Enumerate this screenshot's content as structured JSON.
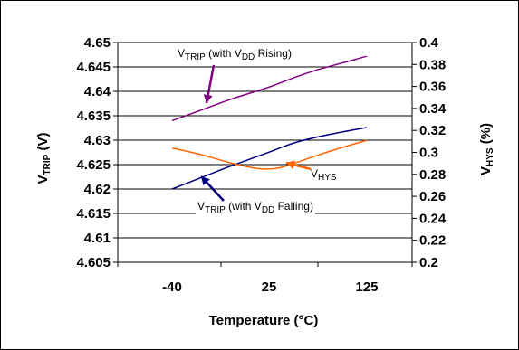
{
  "chart_data": {
    "type": "line",
    "x_categories": [
      "-40",
      "25",
      "125"
    ],
    "xlabel": "Temperature (°C)",
    "ylabel_left": {
      "main": "V",
      "sub": "TRIP",
      "rest": " (V)"
    },
    "ylabel_right": {
      "main": "V",
      "sub": "HYS",
      "rest": " (%)"
    },
    "ylim_left": [
      4.605,
      4.65
    ],
    "ylim_right": [
      0.2,
      0.4
    ],
    "yticks_left": [
      "4.65",
      "4.645",
      "4.64",
      "4.635",
      "4.63",
      "4.625",
      "4.62",
      "4.615",
      "4.61",
      "4.605"
    ],
    "yticks_right": [
      "0.4",
      "0.38",
      "0.36",
      "0.34",
      "0.32",
      "0.3",
      "0.28",
      "0.26",
      "0.24",
      "0.22",
      "0.2"
    ],
    "grid": "horizontal",
    "series": [
      {
        "name": "VTRIP (with VDD Rising)",
        "axis": "left",
        "color": "#800080",
        "points": [
          [
            -40,
            4.634
          ],
          [
            -20,
            4.6362
          ],
          [
            0,
            4.6385
          ],
          [
            25,
            4.6408
          ],
          [
            50,
            4.6428
          ],
          [
            75,
            4.6445
          ],
          [
            100,
            4.6458
          ],
          [
            125,
            4.6472
          ]
        ]
      },
      {
        "name": "VTRIP (with VDD Falling)",
        "axis": "left",
        "color": "#000080",
        "points": [
          [
            -40,
            4.62
          ],
          [
            -20,
            4.6224
          ],
          [
            0,
            4.6248
          ],
          [
            25,
            4.6275
          ],
          [
            50,
            4.6295
          ],
          [
            75,
            4.6307
          ],
          [
            100,
            4.6317
          ],
          [
            125,
            4.6326
          ]
        ]
      },
      {
        "name": "VHYS",
        "axis": "right",
        "color": "#FF6600",
        "points": [
          [
            -40,
            0.304
          ],
          [
            -20,
            0.298
          ],
          [
            0,
            0.29
          ],
          [
            15,
            0.2855
          ],
          [
            25,
            0.2845
          ],
          [
            40,
            0.2865
          ],
          [
            60,
            0.293
          ],
          [
            90,
            0.302
          ],
          [
            125,
            0.311
          ]
        ]
      }
    ],
    "annotations": [
      {
        "main": "V",
        "sub": "TRIP",
        "rest1": " (with V",
        "sub2": "DD",
        "rest2": " Rising)"
      },
      {
        "main": "V",
        "sub": "TRIP",
        "rest1": " (with V",
        "sub2": "DD",
        "rest2": " Falling)"
      },
      {
        "main": "V",
        "sub": "HYS",
        "rest1": "",
        "sub2": "",
        "rest2": ""
      }
    ]
  }
}
